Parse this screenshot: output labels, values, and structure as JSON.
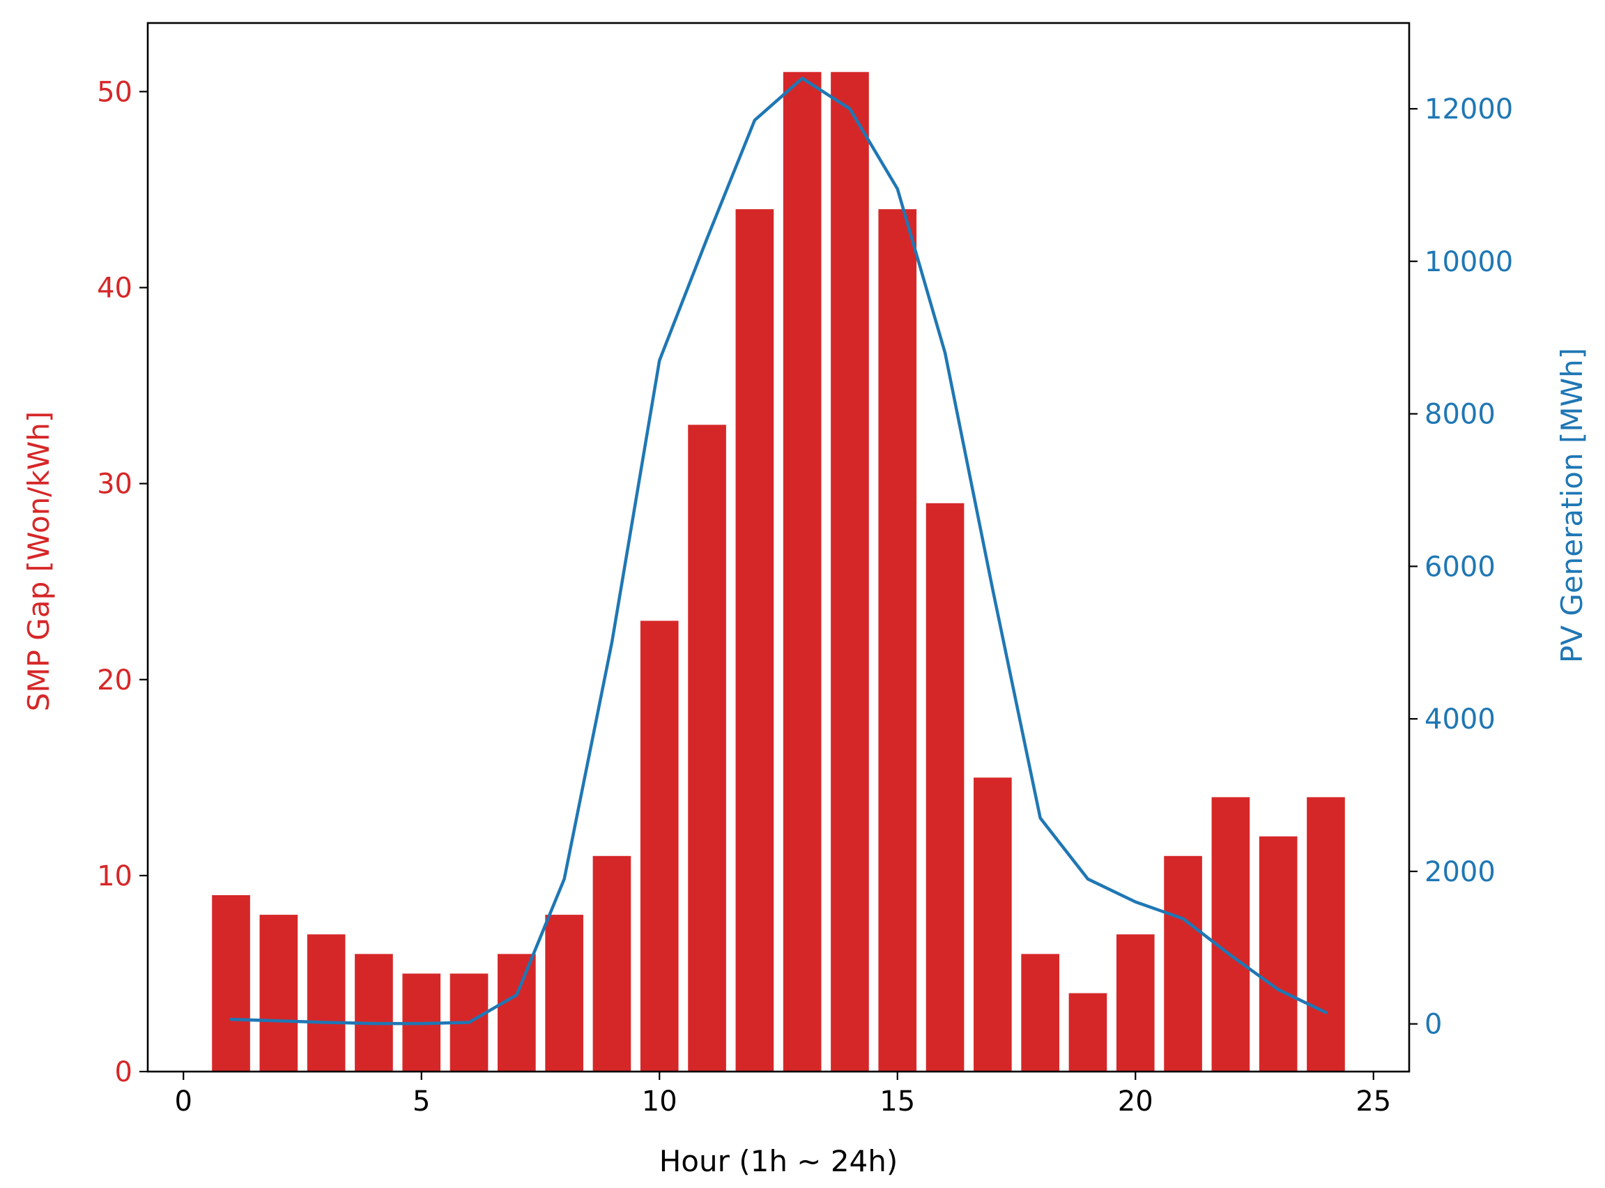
{
  "chart_data": {
    "type": "bar",
    "x_label": "Hour (1h ~ 24h)",
    "x_ticks": [
      0,
      5,
      10,
      15,
      20,
      25
    ],
    "x_range": [
      -0.75,
      25.75
    ],
    "left_axis": {
      "label": "SMP Gap [Won/kWh]",
      "ticks": [
        0,
        10,
        20,
        30,
        40,
        50
      ],
      "range": [
        0,
        53.5
      ],
      "color": "#d62728"
    },
    "right_axis": {
      "label": "PV Generation [MWh]",
      "ticks": [
        0,
        2000,
        4000,
        6000,
        8000,
        10000,
        12000
      ],
      "range": [
        -625,
        13125
      ],
      "color": "#1f77b4"
    },
    "series": [
      {
        "type": "bar",
        "axis": "left",
        "color": "#d62728",
        "x": [
          1,
          2,
          3,
          4,
          5,
          6,
          7,
          8,
          9,
          10,
          11,
          12,
          13,
          14,
          15,
          16,
          17,
          18,
          19,
          20,
          21,
          22,
          23,
          24
        ],
        "values": [
          9,
          8,
          7,
          6,
          5,
          5,
          6,
          8,
          11,
          23,
          33,
          44,
          51,
          51,
          44,
          29,
          15,
          6,
          4,
          7,
          11,
          14,
          12,
          14
        ]
      },
      {
        "type": "line",
        "axis": "right",
        "color": "#1f77b4",
        "x": [
          1,
          2,
          3,
          4,
          5,
          6,
          7,
          8,
          9,
          10,
          11,
          12,
          13,
          14,
          15,
          16,
          17,
          18,
          19,
          20,
          21,
          22,
          23,
          24
        ],
        "values": [
          60,
          40,
          20,
          5,
          5,
          20,
          380,
          1900,
          5000,
          8700,
          10300,
          11850,
          12400,
          12000,
          10950,
          8800,
          5700,
          2700,
          1900,
          1600,
          1380,
          900,
          450,
          150
        ]
      }
    ],
    "grid": false,
    "legend": "none"
  }
}
